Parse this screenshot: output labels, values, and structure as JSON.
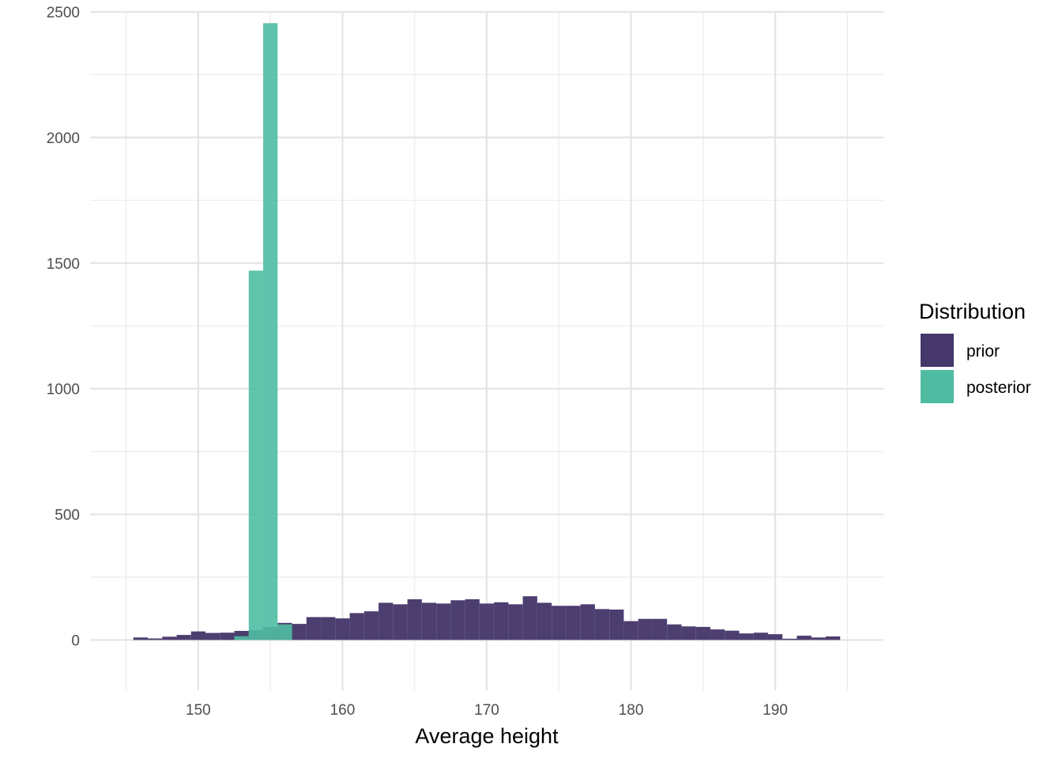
{
  "chart_data": {
    "type": "bar",
    "subtype": "histogram",
    "title": "",
    "xlabel": "Average height",
    "ylabel": "",
    "xlim": [
      142.5,
      197.5
    ],
    "ylim": [
      -200,
      2500
    ],
    "x_ticks": [
      150,
      160,
      170,
      180,
      190
    ],
    "y_ticks": [
      0,
      500,
      1000,
      1500,
      2000,
      2500
    ],
    "grid": true,
    "legend": {
      "title": "Distribution",
      "placement": "right",
      "entries": [
        "prior",
        "posterior"
      ]
    },
    "series": [
      {
        "name": "prior",
        "color": "#46386a",
        "bin_width": 1,
        "bin_centers": [
          146,
          147,
          148,
          149,
          150,
          151,
          152,
          153,
          154,
          155,
          156,
          157,
          158,
          159,
          160,
          161,
          162,
          163,
          164,
          165,
          166,
          167,
          168,
          169,
          170,
          171,
          172,
          173,
          174,
          175,
          176,
          177,
          178,
          179,
          180,
          181,
          182,
          183,
          184,
          185,
          186,
          187,
          188,
          189,
          190,
          191,
          192,
          193,
          194
        ],
        "values": [
          10,
          6,
          13,
          20,
          34,
          28,
          29,
          36,
          39,
          51,
          68,
          64,
          91,
          91,
          86,
          107,
          114,
          148,
          142,
          162,
          148,
          145,
          158,
          162,
          145,
          150,
          142,
          174,
          148,
          136,
          136,
          142,
          123,
          121,
          75,
          84,
          84,
          62,
          54,
          52,
          42,
          37,
          26,
          29,
          23,
          5,
          17,
          10,
          14
        ]
      },
      {
        "name": "posterior",
        "color": "#4fbca2",
        "bin_width": 1,
        "bin_centers": [
          153,
          154,
          155,
          156
        ],
        "values": [
          15,
          1470,
          2455,
          62
        ]
      }
    ]
  }
}
